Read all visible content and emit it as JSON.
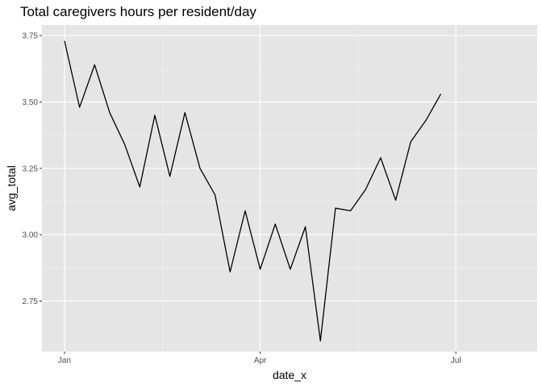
{
  "chart_data": {
    "type": "line",
    "title": "Total caregivers hours per resident/day",
    "xlabel": "date_x",
    "ylabel": "avg_total",
    "x_tick_labels": [
      "Jan",
      "Apr",
      "Jul"
    ],
    "y_tick_labels": [
      "2.75",
      "3.00",
      "3.25",
      "3.50",
      "3.75"
    ],
    "xlim": [
      -1.5,
      31.4
    ],
    "ylim": [
      2.56,
      3.79
    ],
    "grid": true,
    "panel_background": "#e5e5e5",
    "line_color": "#000000",
    "x_tick_positions": [
      0,
      13,
      26
    ],
    "y_ticks": [
      2.75,
      3.0,
      3.25,
      3.5,
      3.75
    ],
    "series": [
      {
        "x": [
          0,
          1,
          2,
          3,
          4,
          5,
          6,
          7,
          8,
          9,
          10,
          11,
          12,
          13,
          14,
          15,
          16,
          17,
          18,
          19,
          20,
          21,
          22,
          23,
          24,
          25
        ],
        "values": [
          3.73,
          3.48,
          3.64,
          3.46,
          3.34,
          3.18,
          3.45,
          3.22,
          3.46,
          3.25,
          3.15,
          2.86,
          3.09,
          2.87,
          3.04,
          2.87,
          3.03,
          2.6,
          3.1,
          3.09,
          3.17,
          3.29,
          3.13,
          3.35,
          3.43,
          3.53
        ]
      }
    ]
  }
}
